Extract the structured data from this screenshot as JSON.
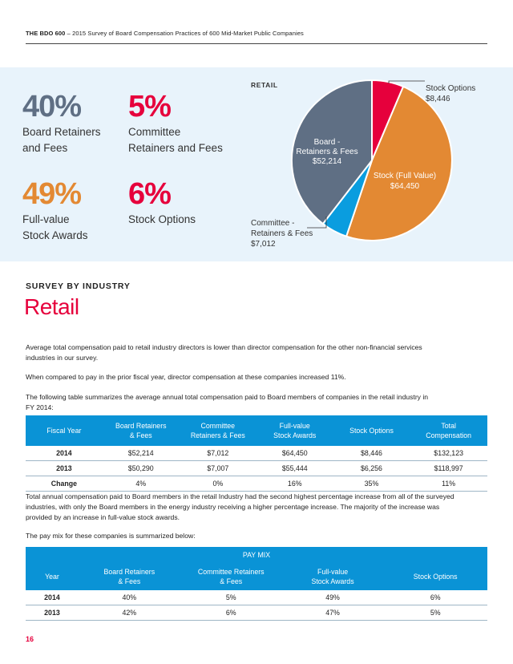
{
  "header": {
    "brand": "THE BDO 600",
    "subtitle": " – 2015 Survey of Board Compensation Practices of 600 Mid-Market Public Companies"
  },
  "stats": [
    {
      "pct": "40%",
      "line1": "Board Retainers",
      "line2": "and Fees",
      "color": "#5f6f84"
    },
    {
      "pct": "5%",
      "line1": "Committee",
      "line2": "Retainers and Fees",
      "color": "#e6003c"
    },
    {
      "pct": "49%",
      "line1": "Full-value",
      "line2": "Stock Awards",
      "color": "#e38933"
    },
    {
      "pct": "6%",
      "line1": "Stock Options",
      "line2": "",
      "color": "#e6003c"
    }
  ],
  "chart_data": {
    "type": "pie",
    "title": "RETAIL",
    "slices": [
      {
        "label": "Stock Options",
        "value": 8446,
        "value_label": "$8,446",
        "color": "#e6003c"
      },
      {
        "label": "Stock (Full Value)",
        "value": 64450,
        "value_label": "$64,450",
        "color": "#e38933"
      },
      {
        "label": "Committee - Retainers & Fees",
        "value": 7012,
        "value_label": "$7,012",
        "color": "#0a9ddf"
      },
      {
        "label": "Board - Retainers & Fees",
        "value": 52214,
        "value_label": "$52,214",
        "color": "#5f6f84"
      }
    ],
    "callouts": {
      "stock_options": {
        "line1": "Stock Options",
        "line2": "$8,446"
      },
      "stock_full": {
        "line1": "Stock (Full Value)",
        "line2": "$64,450"
      },
      "committee": {
        "line1": "Committee -",
        "line2": "Retainers & Fees",
        "line3": "$7,012"
      },
      "board": {
        "line1": "Board -",
        "line2": "Retainers & Fees",
        "line3": "$52,214"
      }
    }
  },
  "section": {
    "kicker": "SURVEY BY INDUSTRY",
    "title": "Retail"
  },
  "paragraphs": {
    "p1_l1": "Average total compensation paid to retail industry directors is lower than director compensation for the other non-financial services",
    "p1_l2": "industries in our survey.",
    "p2": "When compared to pay in the prior fiscal year, director compensation at these companies increased 11%.",
    "p3_l1": "The following table summarizes the average annual total compensation paid to Board members of companies in the retail industry in",
    "p3_l2": "FY 2014:",
    "p4_l1": "Total annual compensation paid to Board members in the retail Industry had the second highest percentage increase from all of the surveyed",
    "p4_l2": "industries, with only the Board members in the energy industry receiving a higher percentage increase. The majority of the increase was",
    "p4_l3": "provided by an increase in full-value stock awards.",
    "p5": "The pay mix for these companies is summarized below:"
  },
  "comp_table": {
    "headers": [
      {
        "l1": "Fiscal Year",
        "l2": ""
      },
      {
        "l1": "Board Retainers",
        "l2": "& Fees"
      },
      {
        "l1": "Committee",
        "l2": "Retainers & Fees"
      },
      {
        "l1": "Full-value",
        "l2": "Stock Awards"
      },
      {
        "l1": "Stock Options",
        "l2": ""
      },
      {
        "l1": "Total",
        "l2": "Compensation"
      }
    ],
    "rows": [
      [
        "2014",
        "$52,214",
        "$7,012",
        "$64,450",
        "$8,446",
        "$132,123"
      ],
      [
        "2013",
        "$50,290",
        "$7,007",
        "$55,444",
        "$6,256",
        "$118,997"
      ],
      [
        "Change",
        "4%",
        "0%",
        "16%",
        "35%",
        "11%"
      ]
    ]
  },
  "mix_table": {
    "title": "PAY MIX",
    "headers": [
      {
        "l1": "Year",
        "l2": ""
      },
      {
        "l1": "Board Retainers",
        "l2": "& Fees"
      },
      {
        "l1": "Committee Retainers",
        "l2": "& Fees"
      },
      {
        "l1": "Full-value",
        "l2": "Stock Awards"
      },
      {
        "l1": "Stock Options",
        "l2": ""
      }
    ],
    "rows": [
      [
        "2014",
        "40%",
        "5%",
        "49%",
        "6%"
      ],
      [
        "2013",
        "42%",
        "6%",
        "47%",
        "5%"
      ]
    ]
  },
  "page_number": "16"
}
